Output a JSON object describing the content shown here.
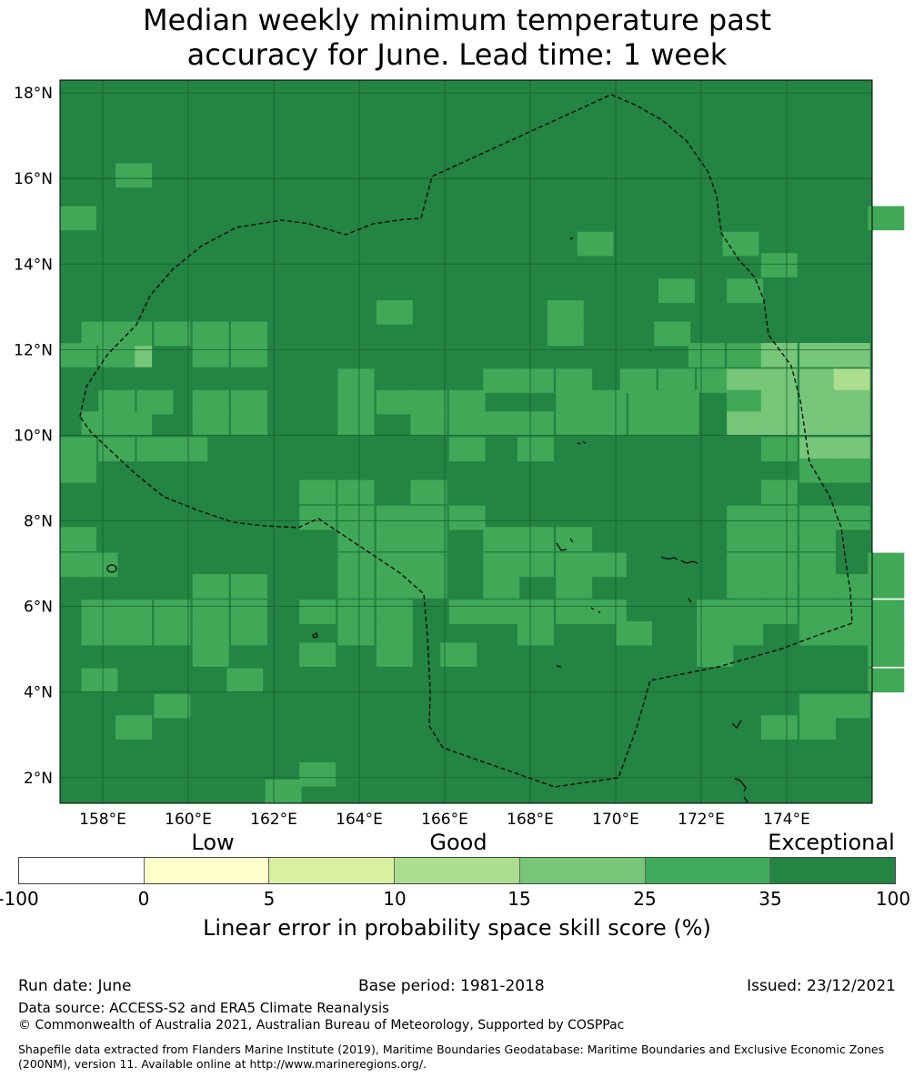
{
  "title_line1": "Median weekly minimum temperature past",
  "title_line2": "accuracy for June. Lead time: 1 week",
  "map": {
    "lon_range": [
      157.0,
      176.0
    ],
    "lat_range": [
      1.4,
      18.3
    ],
    "lat_ticks": [
      "18°N",
      "16°N",
      "14°N",
      "12°N",
      "10°N",
      "8°N",
      "6°N",
      "4°N",
      "2°N"
    ],
    "lon_ticks": [
      "158°E",
      "160°E",
      "162°E",
      "164°E",
      "166°E",
      "168°E",
      "170°E",
      "172°E",
      "174°E"
    ],
    "cell_colors": {
      "1": "#40a857",
      "2": "#78c679",
      "3": "#addd8e"
    },
    "default_color": "#238443",
    "grid_color": "#1a5e30",
    "eez_boundary_style": "dashed black"
  },
  "colorbar": {
    "category_labels": [
      "Low",
      "Good",
      "Exceptional"
    ],
    "colors": [
      "#ffffff",
      "#ffffcc",
      "#d9f0a3",
      "#addd8e",
      "#78c679",
      "#41ab5d",
      "#238443"
    ],
    "ticks": [
      "-100",
      "0",
      "5",
      "10",
      "15",
      "25",
      "35",
      "100"
    ],
    "label": "Linear error in probability space skill score (%)"
  },
  "footer": {
    "run_date": "Run date: June",
    "base_period": "Base period: 1981-2018",
    "issued": "Issued: 23/12/2021",
    "data_source": "Data source: ACCESS-S2 and ERA5 Climate Reanalysis",
    "copyright": "© Commonwealth of Australia 2021, Australian Bureau of Meteorology, Supported by COSPPac",
    "shapefile": "Shapefile data extracted from Flanders Marine Institute (2019), Maritime Boundaries Geodatabase: Maritime Boundaries and Exclusive Economic Zones (200NM), version 11. Available online at http://www.marineregions.org/."
  }
}
